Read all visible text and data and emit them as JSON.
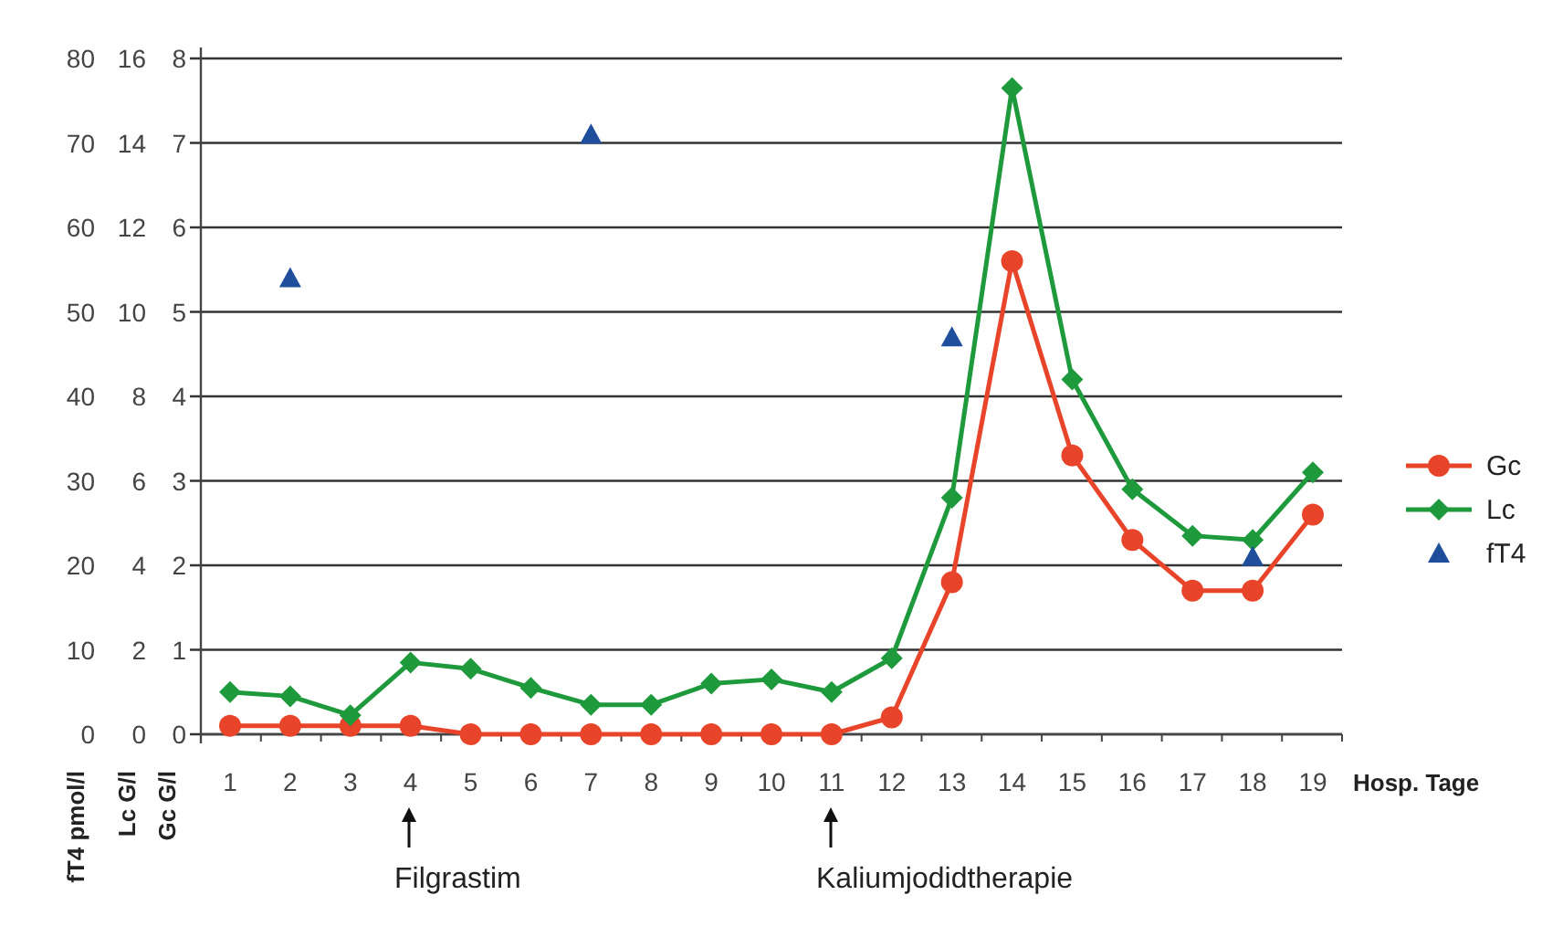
{
  "chart_data": {
    "type": "line",
    "categories": [
      "1",
      "2",
      "3",
      "4",
      "5",
      "6",
      "7",
      "8",
      "9",
      "10",
      "11",
      "12",
      "13",
      "14",
      "15",
      "16",
      "17",
      "18",
      "19"
    ],
    "xlabel": "Hosp. Tage",
    "ylabel": "fT4 pmol/l",
    "y2label": "Lc G/l",
    "y3label": "Gc G/l",
    "ylim": [
      0,
      80
    ],
    "yticks": [
      0,
      10,
      20,
      30,
      40,
      50,
      60,
      70,
      80
    ],
    "y2lim": [
      0,
      16
    ],
    "y2ticks": [
      0,
      2,
      4,
      6,
      8,
      10,
      12,
      14,
      16
    ],
    "y3lim": [
      0,
      8
    ],
    "y3ticks": [
      0,
      1,
      2,
      3,
      4,
      5,
      6,
      7,
      8
    ],
    "grid": "y",
    "legend": "right",
    "series": [
      {
        "name": "Gc",
        "color": "#e8442a",
        "axis": "y3",
        "marker": "circle",
        "values": [
          0.1,
          0.1,
          0.1,
          0.1,
          0,
          0,
          0,
          0,
          0,
          0,
          0,
          0.2,
          1.8,
          5.6,
          3.3,
          2.3,
          1.7,
          1.7,
          2.6
        ]
      },
      {
        "name": "Lc",
        "color": "#1e9a3c",
        "axis": "y2",
        "marker": "diamond",
        "values": [
          1.0,
          0.9,
          0.45,
          1.7,
          1.55,
          1.1,
          0.7,
          0.7,
          1.2,
          1.3,
          1.0,
          1.8,
          5.6,
          15.3,
          8.4,
          5.8,
          4.7,
          4.6,
          6.2
        ]
      },
      {
        "name": "fT4",
        "type": "scatter",
        "color": "#1f4e9c",
        "axis": "y",
        "marker": "triangle",
        "values": [
          null,
          54,
          null,
          null,
          null,
          null,
          71,
          null,
          null,
          null,
          null,
          null,
          47,
          null,
          null,
          null,
          null,
          21,
          null
        ]
      }
    ],
    "annotations": [
      "Filgrastim",
      "Kaliumjodidtherapie"
    ]
  }
}
